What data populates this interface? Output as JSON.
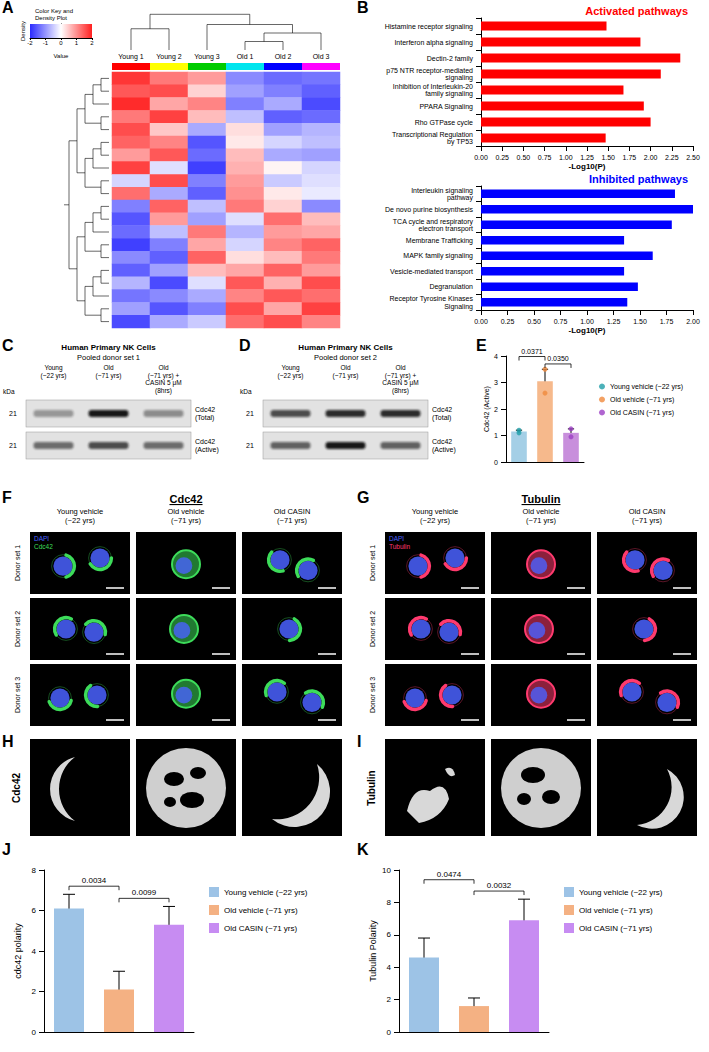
{
  "chart_data": [
    {
      "panel": "A",
      "type": "heatmap",
      "x": [
        "Young 1",
        "Young 2",
        "Young 3",
        "Old 1",
        "Old 2",
        "Old 3"
      ],
      "colors": [
        "#ff0000",
        "#ffff00",
        "#00cc00",
        "#00e5ee",
        "#0000ff",
        "#ff00ff"
      ],
      "values": [
        [
          1.8,
          1.2,
          0.9,
          -1.1,
          -1.4,
          -1.3
        ],
        [
          1.5,
          1.6,
          0.4,
          -0.9,
          -1.2,
          -1.5
        ],
        [
          1.9,
          0.8,
          1.1,
          -1.2,
          -0.8,
          -1.7
        ],
        [
          1.2,
          1.7,
          0.6,
          -0.6,
          -1.5,
          -1.4
        ],
        [
          1.6,
          0.5,
          -0.8,
          0.3,
          -0.9,
          -0.7
        ],
        [
          1.4,
          1.1,
          -1.6,
          0.2,
          -0.4,
          -0.6
        ],
        [
          0.9,
          1.5,
          -1.4,
          0.6,
          -0.8,
          -0.9
        ],
        [
          1.7,
          -0.3,
          -1.8,
          0.7,
          0.1,
          -0.4
        ],
        [
          -0.4,
          1.6,
          -1.2,
          0.9,
          -0.5,
          -0.3
        ],
        [
          1.3,
          -0.8,
          -1.5,
          1.0,
          0.2,
          -0.2
        ],
        [
          -1.2,
          1.4,
          -0.6,
          1.2,
          0.4,
          -1.1
        ],
        [
          -1.6,
          0.9,
          -0.9,
          -0.3,
          1.3,
          0.6
        ],
        [
          -1.4,
          -0.6,
          1.2,
          -0.7,
          0.9,
          0.8
        ],
        [
          -1.8,
          -1.2,
          0.8,
          -0.4,
          1.1,
          1.4
        ],
        [
          -1.1,
          -1.5,
          1.4,
          0.3,
          0.6,
          1.2
        ],
        [
          -1.5,
          -0.9,
          0.6,
          0.8,
          1.4,
          0.9
        ],
        [
          -0.7,
          -1.7,
          -0.3,
          1.5,
          0.7,
          1.6
        ],
        [
          -1.3,
          -1.1,
          -0.8,
          1.1,
          1.5,
          1.3
        ],
        [
          -0.9,
          -1.6,
          -1.2,
          1.6,
          0.8,
          1.7
        ],
        [
          -1.7,
          -0.8,
          -0.5,
          1.3,
          1.6,
          1.1
        ]
      ],
      "color_bar": {
        "title": "Color Key and Density Plot",
        "xlabel": "Value",
        "ylabel": "Density",
        "range": [
          -2,
          2
        ],
        "ticks": [
          -2,
          -1,
          0,
          1,
          2
        ]
      }
    },
    {
      "panel": "B",
      "type": "bar",
      "orientation": "horizontal",
      "title": "Activated pathways",
      "xlabel": "-Log10(P)",
      "categories": [
        "Histamine receptor signaling",
        "Interferon alpha signaling",
        "Dectin-2 family",
        "p75 NTR receptor-mediated signaling",
        "Inhibition of Interleukin-20 family signaling",
        "PPARA Signaling",
        "Rho GTPase cycle",
        "Transcriptional Regulation by TP53"
      ],
      "values": [
        1.48,
        1.88,
        2.35,
        2.12,
        1.68,
        1.92,
        2.0,
        1.47
      ],
      "color": "#ff0000",
      "xlim": [
        0,
        2.5
      ],
      "xticks": [
        {
          "value": 0,
          "label": "0.00"
        },
        {
          "value": 0.25,
          "label": "0.25"
        },
        {
          "value": 0.5,
          "label": "0.50"
        },
        {
          "value": 0.75,
          "label": "0.75"
        },
        {
          "value": 1,
          "label": "1.00"
        },
        {
          "value": 1.25,
          "label": "1.25"
        },
        {
          "value": 1.5,
          "label": "1.50"
        },
        {
          "value": 1.75,
          "label": "1.75"
        },
        {
          "value": 2,
          "label": "2.00"
        },
        {
          "value": 2.25,
          "label": "2.25"
        },
        {
          "value": 2.5,
          "label": "2.50"
        }
      ]
    },
    {
      "type": "bar",
      "orientation": "horizontal",
      "title": "Inhibited pathways",
      "xlabel": "-Log10(P)",
      "categories": [
        "Interleukin signaling pathway",
        "De novo purine biosynthesis",
        "TCA cycle and respiratory electron transport",
        "Membrane Trafficking",
        "MAPK family signaling",
        "Vesicle-mediated transport",
        "Degranulation",
        "Receptor Tyrosine Kinases Signaling"
      ],
      "values": [
        1.83,
        2.0,
        1.8,
        1.35,
        1.62,
        1.35,
        1.48,
        1.38
      ],
      "color": "#0000ff",
      "xlim": [
        0,
        2
      ],
      "xticks": [
        {
          "value": 0,
          "label": "0.00"
        },
        {
          "value": 0.25,
          "label": "0.25"
        },
        {
          "value": 0.5,
          "label": "0.50"
        },
        {
          "value": 0.75,
          "label": "0.75"
        },
        {
          "value": 1,
          "label": "1.00"
        },
        {
          "value": 1.25,
          "label": "1.25"
        },
        {
          "value": 1.5,
          "label": "1.50"
        },
        {
          "value": 1.75,
          "label": "1.75"
        },
        {
          "value": 2,
          "label": "2.00"
        }
      ]
    },
    {
      "panel": "E",
      "type": "bar",
      "ylabel": "Cdc42 (Active)",
      "values": [
        1.15,
        3.05,
        1.1
      ],
      "errors": [
        0.05,
        0.45,
        0.15
      ],
      "colors": [
        "#a4cfe6",
        "#f6b98c",
        "#c88fdc"
      ],
      "series": [
        {
          "name": "Young vehicle (~22 yrs)",
          "type": "scatter",
          "color": "#1f9ea8",
          "values": [
            1.1,
            1.2
          ]
        },
        {
          "name": "Old vehicle (~71 yrs)",
          "type": "scatter",
          "color": "#f08a3c",
          "values": [
            2.6,
            3.5
          ]
        },
        {
          "name": "Old CASIN (~71 yrs)",
          "type": "scatter",
          "color": "#9c3fc4",
          "values": [
            1.25,
            0.95
          ]
        }
      ],
      "ylim": [
        0,
        4
      ],
      "yticks": [
        0,
        1,
        2,
        3,
        4
      ],
      "legend": "right",
      "tick_labels": "y",
      "comparisons": [
        {
          "between": [
            0,
            1
          ],
          "label": "0.0371"
        },
        {
          "between": [
            1,
            2
          ],
          "label": "0.0350"
        }
      ]
    },
    {
      "panel": "J",
      "type": "bar",
      "ylabel": "cdc42 polarity",
      "series": [
        {
          "name": "Young vehicle (~22 yrs)",
          "color": "#9dc3e6",
          "values": [
            6.1
          ],
          "errors": [
            0.7
          ]
        },
        {
          "name": "Old vehicle (~71 yrs)",
          "color": "#f4b183",
          "values": [
            2.1
          ],
          "errors": [
            0.9
          ]
        },
        {
          "name": "Old CASIN (~71 yrs)",
          "color": "#c78cf2",
          "values": [
            5.3
          ],
          "errors": [
            0.9
          ]
        }
      ],
      "ylim": [
        0,
        8
      ],
      "yticks": [
        0,
        2,
        4,
        6,
        8
      ],
      "legend": "right",
      "tick_labels": "y",
      "comparisons": [
        {
          "between": [
            0,
            1
          ],
          "label": "0.0034"
        },
        {
          "between": [
            1,
            2
          ],
          "label": "0.0099"
        }
      ]
    },
    {
      "panel": "K",
      "type": "bar",
      "ylabel": "Tubulin Polarity",
      "series": [
        {
          "name": "Young vehicle (~22 yrs)",
          "color": "#9dc3e6",
          "values": [
            4.6
          ],
          "errors": [
            1.2
          ]
        },
        {
          "name": "Old vehicle (~71 yrs)",
          "color": "#f4b183",
          "values": [
            1.6
          ],
          "errors": [
            0.5
          ]
        },
        {
          "name": "Old CASIN (~71 yrs)",
          "color": "#c78cf2",
          "values": [
            6.9
          ],
          "errors": [
            1.3
          ]
        }
      ],
      "ylim": [
        0,
        10
      ],
      "yticks": [
        0,
        2,
        4,
        6,
        8,
        10
      ],
      "legend": "right",
      "tick_labels": "y",
      "comparisons": [
        {
          "between": [
            0,
            1
          ],
          "label": "0.0474"
        },
        {
          "between": [
            1,
            2
          ],
          "label": "0.0032"
        }
      ]
    }
  ],
  "blots": [
    {
      "panel": "C",
      "title": "Human Primary NK Cells",
      "subtitle": "Pooled donor set 1",
      "unit": "kDa",
      "lanes": [
        "Young (~22 yrs)",
        "Old (~71 yrs)",
        "Old (~71 yrs) + CASIN 5 μM (8hrs)"
      ],
      "rows": [
        {
          "size": "21",
          "label": "Cdc42 (Total)"
        },
        {
          "size": "21",
          "label": "Cdc42 (Active)"
        }
      ]
    },
    {
      "panel": "D",
      "title": "Human Primary NK Cells",
      "subtitle": "Pooled donor set 2",
      "unit": "kDa",
      "lanes": [
        "Young (~22 yrs)",
        "Old (~71 yrs)",
        "Old (~71 yrs) + CASIN 5 μM (8hrs)"
      ],
      "rows": [
        {
          "size": "21",
          "label": "Cdc42 (Total)"
        },
        {
          "size": "21",
          "label": "Cdc42 (Active)"
        }
      ]
    }
  ],
  "micrographs": [
    {
      "panel": "F",
      "title": "Cdc42",
      "columns": [
        "Young vehicle (~22 yrs)",
        "Old vehicle (~71 yrs)",
        "Old CASIN (~71 yrs)"
      ],
      "rows": [
        "Donor set 1",
        "Donor set 2",
        "Donor set 3"
      ],
      "channels": [
        {
          "name": "DAPI",
          "color": "#4a62ff"
        },
        {
          "name": "Cdc42",
          "color": "#3ddc5a"
        }
      ]
    },
    {
      "panel": "G",
      "title": "Tubulin",
      "columns": [
        "Young vehicle (~22 yrs)",
        "Old vehicle (~71 yrs)",
        "Old CASIN (~71 yrs)"
      ],
      "rows": [
        "Donor set 1",
        "Donor set 2",
        "Donor set 3"
      ],
      "channels": [
        {
          "name": "DAPI",
          "color": "#4a62ff"
        },
        {
          "name": "Tubulin",
          "color": "#ff3a6e"
        }
      ]
    }
  ],
  "polarity_maps": [
    {
      "panel": "H",
      "label": "Cdc42"
    },
    {
      "panel": "I",
      "label": "Tubulin"
    }
  ]
}
